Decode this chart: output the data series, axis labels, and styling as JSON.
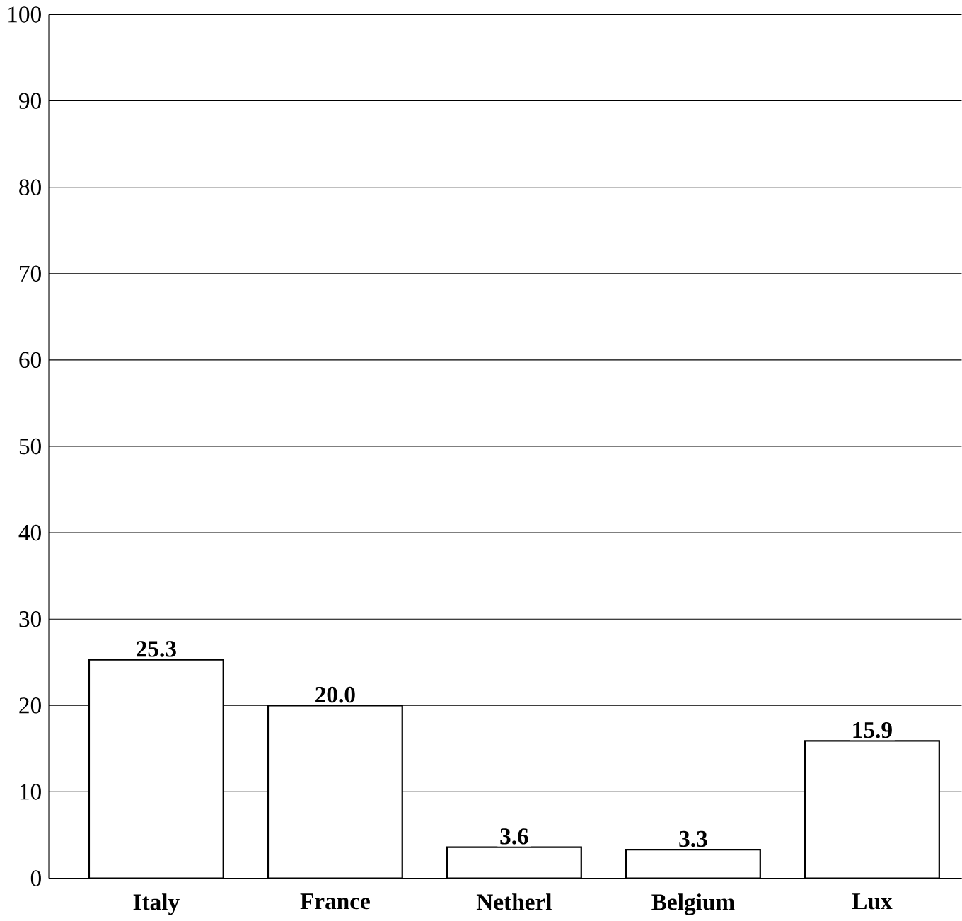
{
  "chart_data": {
    "type": "bar",
    "categories": [
      "Italy",
      "France",
      "Netherl",
      "Belgium",
      "Lux"
    ],
    "values": [
      25.3,
      20.0,
      3.6,
      3.3,
      15.9
    ],
    "value_labels": [
      "25.3",
      "20.0",
      "3.6",
      "3.3",
      "15.9"
    ],
    "color": "#ffffff",
    "ylim": [
      0,
      100
    ],
    "yticks": [
      0,
      10,
      20,
      30,
      40,
      50,
      60,
      70,
      80,
      90,
      100
    ],
    "grid": "y"
  }
}
